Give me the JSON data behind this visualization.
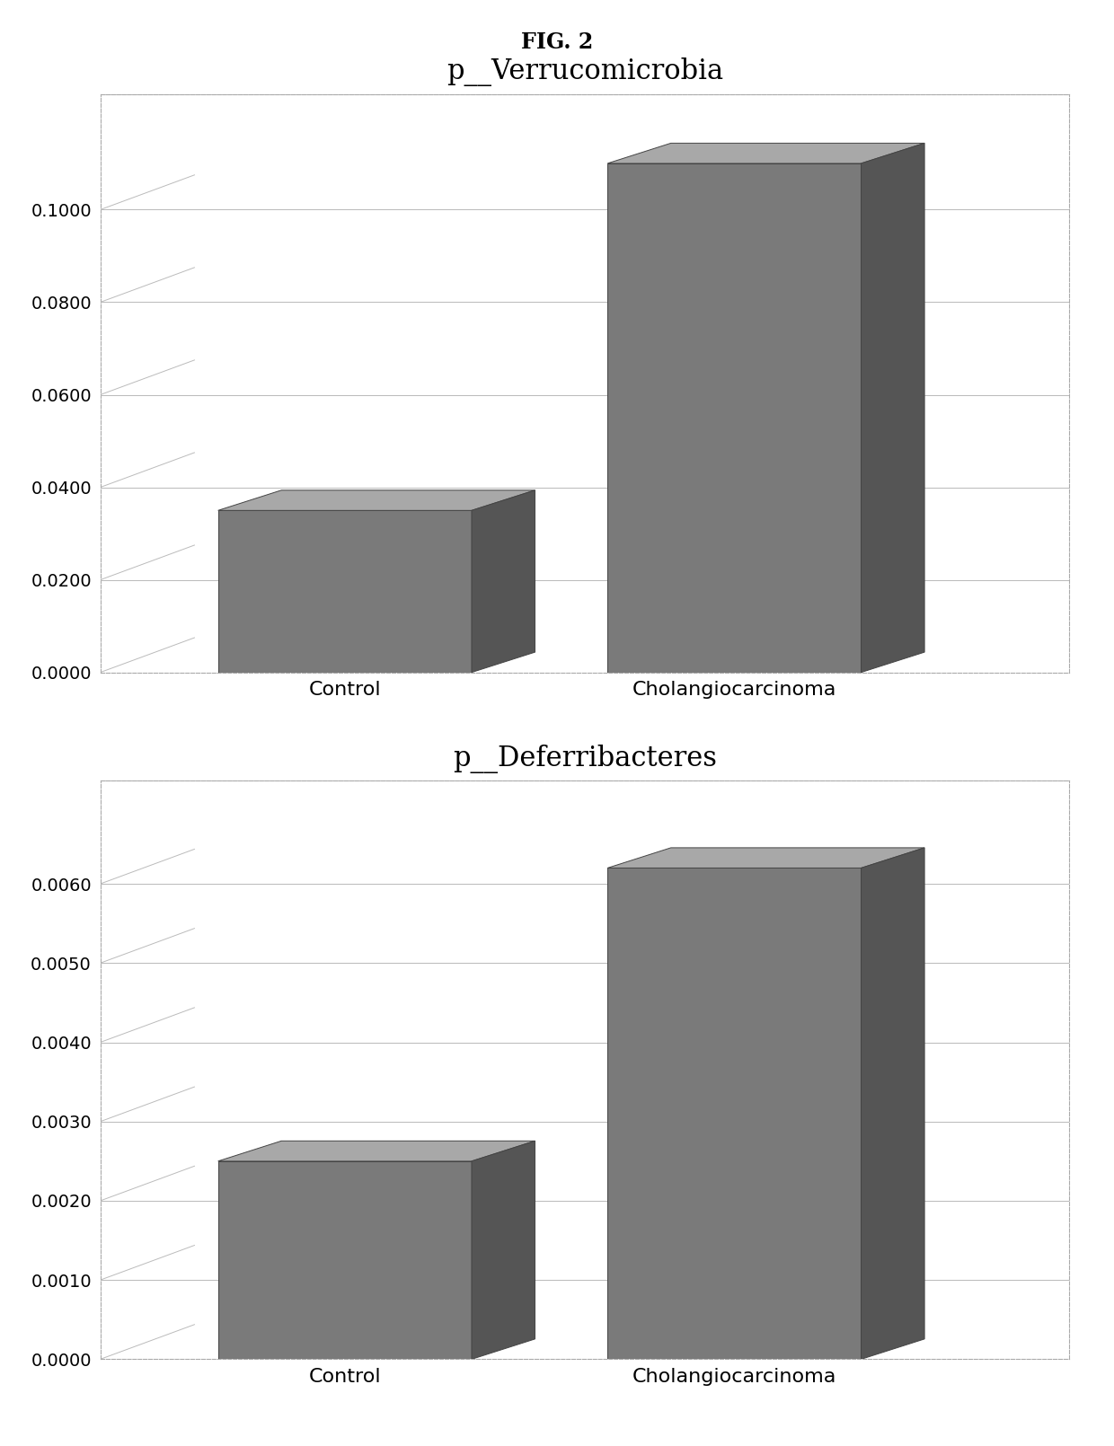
{
  "fig_title": "FIG. 2",
  "charts": [
    {
      "title": "p__Verrucomicrobia",
      "categories": [
        "Control",
        "Cholangiocarcinoma"
      ],
      "values": [
        0.035,
        0.11
      ],
      "ylim": [
        0,
        0.125
      ],
      "yticks": [
        0.0,
        0.02,
        0.04,
        0.06,
        0.08,
        0.1
      ],
      "ytick_labels": [
        "0.0000",
        "0.0200",
        "0.0400",
        "0.0600",
        "0.0800",
        "0.1000"
      ]
    },
    {
      "title": "p__Deferribacteres",
      "categories": [
        "Control",
        "Cholangiocarcinoma"
      ],
      "values": [
        0.0025,
        0.0062
      ],
      "ylim": [
        0,
        0.0073
      ],
      "yticks": [
        0.0,
        0.001,
        0.002,
        0.003,
        0.004,
        0.005,
        0.006
      ],
      "ytick_labels": [
        "0.0000",
        "0.0010",
        "0.0020",
        "0.0030",
        "0.0040",
        "0.0050",
        "0.0060"
      ]
    }
  ],
  "bar_color_front": "#7a7a7a",
  "bar_color_top": "#a8a8a8",
  "bar_color_side": "#555555",
  "bar_edge_color": "#444444",
  "background_color": "#ffffff",
  "panel_bg": "#ffffff",
  "fig_title_fontsize": 17,
  "chart_title_fontsize": 22,
  "tick_fontsize": 14,
  "label_fontsize": 16,
  "grid_color": "#bbbbbb",
  "grid_linewidth": 0.7,
  "border_color": "#aaaaaa",
  "border_linestyle": "--",
  "border_linewidth": 0.8
}
